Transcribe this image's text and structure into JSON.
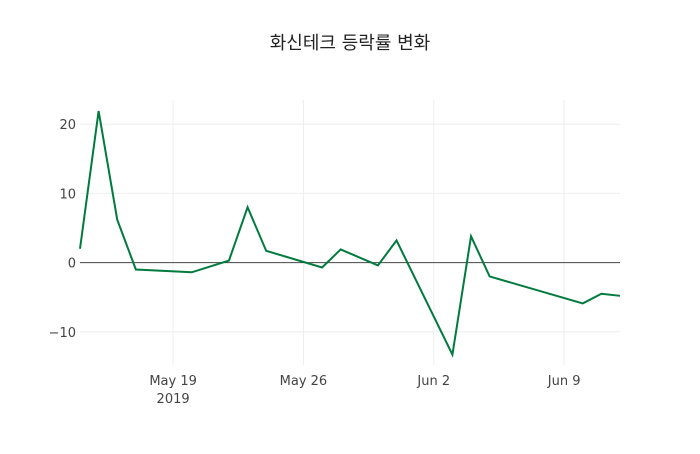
{
  "chart_data": {
    "type": "line",
    "title": "화신테크 등락률 변화",
    "xlabel": "",
    "ylabel": "",
    "x": [
      "2019-05-14",
      "2019-05-15",
      "2019-05-16",
      "2019-05-17",
      "2019-05-20",
      "2019-05-22",
      "2019-05-23",
      "2019-05-24",
      "2019-05-27",
      "2019-05-28",
      "2019-05-30",
      "2019-05-31",
      "2019-06-03",
      "2019-06-04",
      "2019-06-05",
      "2019-06-10",
      "2019-06-11",
      "2019-06-12"
    ],
    "series": [
      {
        "name": "등락률",
        "color": "#007a3d",
        "values": [
          2.0,
          21.9,
          6.2,
          -1.0,
          -1.4,
          0.3,
          8.0,
          1.7,
          -0.7,
          1.9,
          -0.4,
          3.2,
          -13.3,
          3.8,
          -2.0,
          -5.9,
          -4.5,
          -4.8
        ]
      }
    ],
    "xlim": [
      "2019-05-14",
      "2019-06-12"
    ],
    "ylim": [
      -14.8,
      23.5
    ],
    "x_ticks": [
      {
        "date": "2019-05-19",
        "label": "May 19",
        "sublabel": "2019"
      },
      {
        "date": "2019-05-26",
        "label": "May 26"
      },
      {
        "date": "2019-06-02",
        "label": "Jun 2"
      },
      {
        "date": "2019-06-09",
        "label": "Jun 9"
      }
    ],
    "y_ticks": [
      {
        "value": -10,
        "label": "−10"
      },
      {
        "value": 0,
        "label": "0"
      },
      {
        "value": 10,
        "label": "10"
      },
      {
        "value": 20,
        "label": "20"
      }
    ],
    "grid": true,
    "legend": "none"
  }
}
